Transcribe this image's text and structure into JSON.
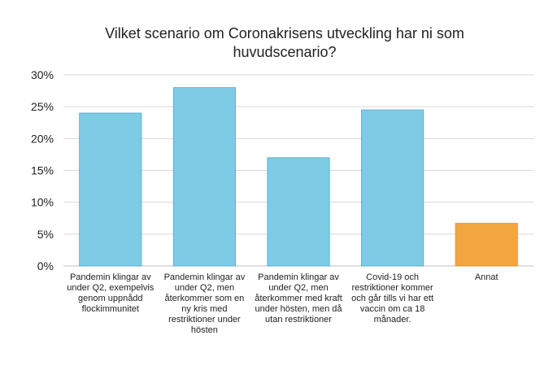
{
  "chart_data": {
    "type": "bar",
    "title_lines": [
      "Vilket scenario om Coronakrisens utveckling har ni som",
      "huvudscenario?"
    ],
    "categories": [
      [
        "Pandemin klingar av",
        "under Q2, exempelvis",
        "genom uppnådd",
        "flockimmunitet"
      ],
      [
        "Pandemin klingar av",
        "under Q2, men",
        "återkommer som en",
        "ny kris med",
        "restriktioner under",
        "hösten"
      ],
      [
        "Pandemin klingar av",
        "under Q2, men",
        "återkommer med kraft",
        "under hösten, men då",
        "utan restriktioner"
      ],
      [
        "Covid-19 och",
        "restriktioner kommer",
        "och går tills vi har ett",
        "vaccin om ca 18",
        "månader."
      ],
      [
        "Annat"
      ]
    ],
    "values": [
      24,
      28,
      17,
      24.5,
      6.7
    ],
    "ylim": [
      0,
      30
    ],
    "yticks": [
      0,
      5,
      10,
      15,
      20,
      25,
      30
    ],
    "ytick_labels": [
      "0%",
      "5%",
      "10%",
      "15%",
      "20%",
      "25%",
      "30%"
    ],
    "grid": true,
    "colors": [
      "#7ecbe6",
      "#7ecbe6",
      "#7ecbe6",
      "#7ecbe6",
      "#f3a63f"
    ],
    "bar_edge": "#4fa9cc",
    "grid_color": "#d9d9d9"
  }
}
